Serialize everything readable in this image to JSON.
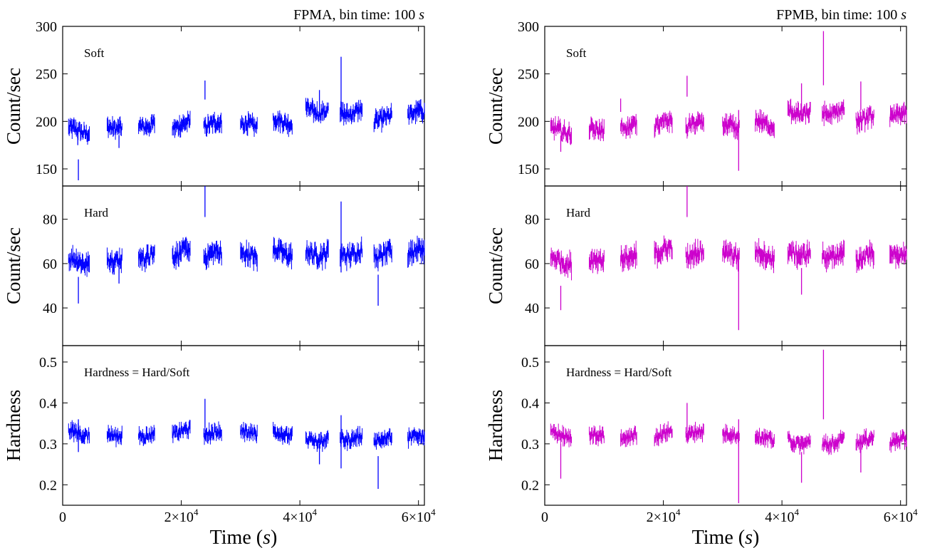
{
  "chart_data": [
    {
      "type": "line",
      "title": "FPMA, bin time: 100 s",
      "title_parts": {
        "prefix": "FPMA, bin time: 100 ",
        "unit": "s"
      },
      "color": "#0000ff",
      "xlabel": "Time (s)",
      "xlabel_parts": {
        "prefix": "Time (",
        "unit": "s",
        "suffix": ")"
      },
      "xlim": [
        0,
        61000
      ],
      "xticks": [
        {
          "value": 0,
          "mant": "0",
          "exp": ""
        },
        {
          "value": 20000,
          "mant": "2×10",
          "exp": "4"
        },
        {
          "value": 40000,
          "mant": "4×10",
          "exp": "4"
        },
        {
          "value": 60000,
          "mant": "6×10",
          "exp": "4"
        }
      ],
      "segments": [
        [
          1000,
          4500
        ],
        [
          7500,
          10000
        ],
        [
          12800,
          15500
        ],
        [
          18500,
          21500
        ],
        [
          23800,
          26800
        ],
        [
          30000,
          32800
        ],
        [
          35500,
          38700
        ],
        [
          41000,
          44800
        ],
        [
          46800,
          50500
        ],
        [
          52500,
          55500
        ],
        [
          58200,
          61000
        ]
      ],
      "panels": [
        {
          "label": "Soft",
          "ylabel": "Count/sec",
          "ylim": [
            132,
            300
          ],
          "yticks": [
            150,
            200,
            250,
            300
          ],
          "levels": [
            190,
            195,
            197,
            196,
            196,
            195,
            200,
            212,
            210,
            203,
            208
          ],
          "noise": 6,
          "spikes": [
            {
              "x": 2650,
              "lo": 138,
              "hi": 160
            },
            {
              "x": 2550,
              "lo": 175,
              "hi": 185
            },
            {
              "x": 9500,
              "lo": 172,
              "hi": 185
            },
            {
              "x": 24000,
              "lo": 223,
              "hi": 243
            },
            {
              "x": 43300,
              "lo": 205,
              "hi": 233
            },
            {
              "x": 46950,
              "lo": 200,
              "hi": 268
            }
          ]
        },
        {
          "label": "Hard",
          "ylabel": "Count/sec",
          "ylim": [
            23,
            95
          ],
          "yticks": [
            40,
            60,
            80
          ],
          "levels": [
            61,
            63,
            64,
            65,
            64,
            63,
            65,
            65,
            65,
            64,
            65
          ],
          "noise": 3,
          "spikes": [
            {
              "x": 2650,
              "lo": 42,
              "hi": 54
            },
            {
              "x": 9500,
              "lo": 51,
              "hi": 58
            },
            {
              "x": 24000,
              "lo": 81,
              "hi": 95
            },
            {
              "x": 46950,
              "lo": 56,
              "hi": 88
            },
            {
              "x": 53200,
              "lo": 41,
              "hi": 55
            }
          ]
        },
        {
          "label": "Hardness = Hard/Soft",
          "ylabel": "Hardness",
          "ylim": [
            0.15,
            0.54
          ],
          "yticks": [
            0.2,
            0.3,
            0.4,
            0.5
          ],
          "levels": [
            0.325,
            0.325,
            0.325,
            0.33,
            0.325,
            0.325,
            0.325,
            0.31,
            0.315,
            0.315,
            0.315
          ],
          "noise": 0.012,
          "spikes": [
            {
              "x": 2650,
              "lo": 0.28,
              "hi": 0.36
            },
            {
              "x": 24000,
              "lo": 0.34,
              "hi": 0.41
            },
            {
              "x": 43300,
              "lo": 0.25,
              "hi": 0.3
            },
            {
              "x": 46950,
              "lo": 0.24,
              "hi": 0.37
            },
            {
              "x": 53200,
              "lo": 0.19,
              "hi": 0.27
            }
          ]
        }
      ]
    },
    {
      "type": "line",
      "title": "FPMB, bin time: 100 s",
      "title_parts": {
        "prefix": "FPMB, bin time: 100 ",
        "unit": "s"
      },
      "color": "#cc00cc",
      "xlabel": "Time (s)",
      "xlabel_parts": {
        "prefix": "Time (",
        "unit": "s",
        "suffix": ")"
      },
      "xlim": [
        0,
        61000
      ],
      "xticks": [
        {
          "value": 0,
          "mant": "0",
          "exp": ""
        },
        {
          "value": 20000,
          "mant": "2×10",
          "exp": "4"
        },
        {
          "value": 40000,
          "mant": "4×10",
          "exp": "4"
        },
        {
          "value": 60000,
          "mant": "6×10",
          "exp": "4"
        }
      ],
      "segments": [
        [
          1000,
          4500
        ],
        [
          7500,
          10000
        ],
        [
          12800,
          15500
        ],
        [
          18500,
          21500
        ],
        [
          23800,
          26800
        ],
        [
          30000,
          32800
        ],
        [
          35500,
          38700
        ],
        [
          41000,
          44800
        ],
        [
          46800,
          50500
        ],
        [
          52500,
          55500
        ],
        [
          58200,
          61000
        ]
      ],
      "panels": [
        {
          "label": "Soft",
          "ylabel": "Count/sec",
          "ylim": [
            132,
            300
          ],
          "yticks": [
            150,
            200,
            250,
            300
          ],
          "levels": [
            190,
            193,
            197,
            198,
            196,
            193,
            198,
            210,
            210,
            203,
            205
          ],
          "noise": 6,
          "spikes": [
            {
              "x": 2700,
              "lo": 168,
              "hi": 185
            },
            {
              "x": 12800,
              "lo": 210,
              "hi": 224
            },
            {
              "x": 24000,
              "lo": 226,
              "hi": 248
            },
            {
              "x": 32700,
              "lo": 148,
              "hi": 212
            },
            {
              "x": 43300,
              "lo": 200,
              "hi": 240
            },
            {
              "x": 47000,
              "lo": 238,
              "hi": 295
            },
            {
              "x": 53300,
              "lo": 212,
              "hi": 242
            }
          ]
        },
        {
          "label": "Hard",
          "ylabel": "Count/sec",
          "ylim": [
            23,
            95
          ],
          "yticks": [
            40,
            60,
            80
          ],
          "levels": [
            61,
            62,
            64,
            66,
            64,
            63,
            64,
            65,
            64,
            63,
            63
          ],
          "noise": 3,
          "spikes": [
            {
              "x": 2700,
              "lo": 39,
              "hi": 50
            },
            {
              "x": 24000,
              "lo": 81,
              "hi": 95
            },
            {
              "x": 32700,
              "lo": 30,
              "hi": 66
            },
            {
              "x": 43300,
              "lo": 46,
              "hi": 58
            }
          ]
        },
        {
          "label": "Hardness = Hard/Soft",
          "ylabel": "Hardness",
          "ylim": [
            0.15,
            0.54
          ],
          "yticks": [
            0.2,
            0.3,
            0.4,
            0.5
          ],
          "levels": [
            0.32,
            0.325,
            0.32,
            0.325,
            0.325,
            0.32,
            0.315,
            0.305,
            0.305,
            0.31,
            0.305
          ],
          "noise": 0.012,
          "spikes": [
            {
              "x": 2700,
              "lo": 0.215,
              "hi": 0.3
            },
            {
              "x": 24000,
              "lo": 0.33,
              "hi": 0.4
            },
            {
              "x": 32700,
              "lo": 0.155,
              "hi": 0.36
            },
            {
              "x": 43300,
              "lo": 0.205,
              "hi": 0.28
            },
            {
              "x": 47000,
              "lo": 0.36,
              "hi": 0.53
            },
            {
              "x": 53300,
              "lo": 0.23,
              "hi": 0.32
            }
          ]
        }
      ]
    }
  ]
}
